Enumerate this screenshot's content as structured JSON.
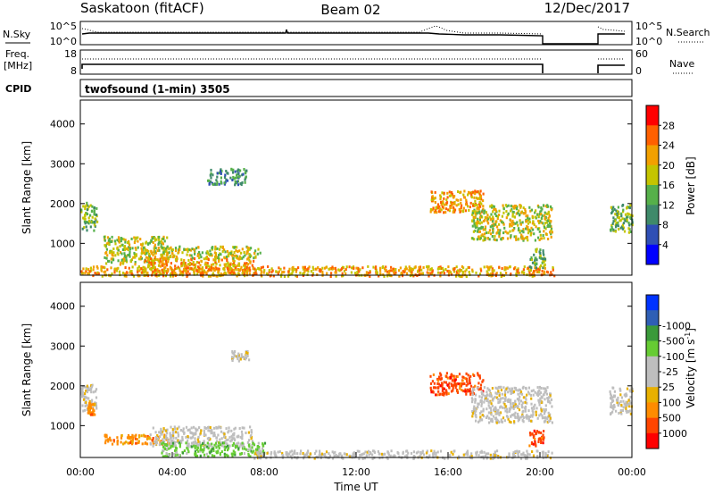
{
  "header": {
    "station": "Saskatoon (fitACF)",
    "beam": "Beam 02",
    "date": "12/Dec/2017"
  },
  "top_panels": {
    "nsky_label": "N.Sky",
    "nsky_ticks": [
      "10^5",
      "10^0"
    ],
    "nsky_right_ticks": [
      "10^5",
      "10^0"
    ],
    "nsearch_label": "N.Search",
    "freq_label": "Freq.",
    "freq_unit": "[MHz]",
    "freq_ticks": [
      "18",
      "8"
    ],
    "nave_ticks": [
      "60",
      "0"
    ],
    "nave_label": "Nave",
    "cpid_label": "CPID",
    "cpid_value": "twofsound (1-min) 3505"
  },
  "colors": {
    "power": [
      "#0000ff",
      "#2f4fb5",
      "#3f8a6a",
      "#56b04a",
      "#c4c400",
      "#f2a000",
      "#ff6000",
      "#ff0000"
    ],
    "velocity": [
      "#ff0000",
      "#ff4500",
      "#ff8c00",
      "#e8b000",
      "#bebebe",
      "#bebebe",
      "#66cc33",
      "#3a9a3a",
      "#2f5fb5",
      "#0033ff"
    ]
  },
  "chart_data": [
    {
      "type": "heatmap",
      "name": "power",
      "ylabel": "Slant Range [km]",
      "yticks": [
        1000,
        2000,
        3000,
        4000
      ],
      "ylim": [
        200,
        4600
      ],
      "xlim": [
        0,
        24
      ],
      "colorbar": {
        "label": "Power [dB]",
        "ticks": [
          "4",
          "8",
          "12",
          "16",
          "20",
          "24",
          "28"
        ]
      },
      "features": [
        {
          "t0": 0.0,
          "t1": 0.7,
          "r0": 1350,
          "r1": 2050,
          "level": 3
        },
        {
          "t0": 1.0,
          "t1": 3.8,
          "r0": 500,
          "r1": 1200,
          "level": 4
        },
        {
          "t0": 2.5,
          "t1": 7.5,
          "r0": 250,
          "r1": 650,
          "level": 5
        },
        {
          "t0": 3.5,
          "t1": 7.8,
          "r0": 650,
          "r1": 950,
          "level": 4
        },
        {
          "t0": 5.5,
          "t1": 7.2,
          "r0": 2500,
          "r1": 2900,
          "level": 2
        },
        {
          "t0": 0.0,
          "t1": 20.6,
          "r0": 200,
          "r1": 450,
          "level": 5
        },
        {
          "t0": 15.2,
          "t1": 17.5,
          "r0": 1800,
          "r1": 2350,
          "level": 5
        },
        {
          "t0": 17.0,
          "t1": 20.5,
          "r0": 1100,
          "r1": 2000,
          "level": 4
        },
        {
          "t0": 19.5,
          "t1": 20.2,
          "r0": 400,
          "r1": 900,
          "level": 3
        },
        {
          "t0": 23.0,
          "t1": 24.0,
          "r0": 1300,
          "r1": 2000,
          "level": 3
        }
      ]
    },
    {
      "type": "heatmap",
      "name": "velocity",
      "ylabel": "Slant Range [km]",
      "xlabel": "Time UT",
      "yticks": [
        1000,
        2000,
        3000,
        4000
      ],
      "ylim": [
        200,
        4600
      ],
      "xlim": [
        0,
        24
      ],
      "xticks": [
        "00:00",
        "04:00",
        "08:00",
        "12:00",
        "16:00",
        "20:00",
        "00:00"
      ],
      "colorbar": {
        "label": "Velocity [m s-1]",
        "ticks": [
          "-1000",
          "-500",
          "-100",
          "-25",
          "25",
          "100",
          "500",
          "1000"
        ]
      },
      "features": [
        {
          "t0": 0.0,
          "t1": 0.7,
          "r0": 1350,
          "r1": 2050,
          "level": 4
        },
        {
          "t0": 0.3,
          "t1": 0.6,
          "r0": 1300,
          "r1": 1600,
          "level": 2
        },
        {
          "t0": 1.0,
          "t1": 3.8,
          "r0": 550,
          "r1": 800,
          "level": 2
        },
        {
          "t0": 3.0,
          "t1": 7.5,
          "r0": 500,
          "r1": 1000,
          "level": 4
        },
        {
          "t0": 3.5,
          "t1": 8.0,
          "r0": 250,
          "r1": 600,
          "level": 6
        },
        {
          "t0": 7.5,
          "t1": 20.5,
          "r0": 200,
          "r1": 400,
          "level": 4
        },
        {
          "t0": 6.5,
          "t1": 7.3,
          "r0": 2650,
          "r1": 2900,
          "level": 4
        },
        {
          "t0": 15.2,
          "t1": 17.5,
          "r0": 1800,
          "r1": 2350,
          "level": 1
        },
        {
          "t0": 17.0,
          "t1": 20.5,
          "r0": 1100,
          "r1": 2000,
          "level": 4
        },
        {
          "t0": 19.5,
          "t1": 20.2,
          "r0": 500,
          "r1": 900,
          "level": 1
        },
        {
          "t0": 23.0,
          "t1": 24.0,
          "r0": 1300,
          "r1": 2000,
          "level": 4
        }
      ]
    }
  ]
}
